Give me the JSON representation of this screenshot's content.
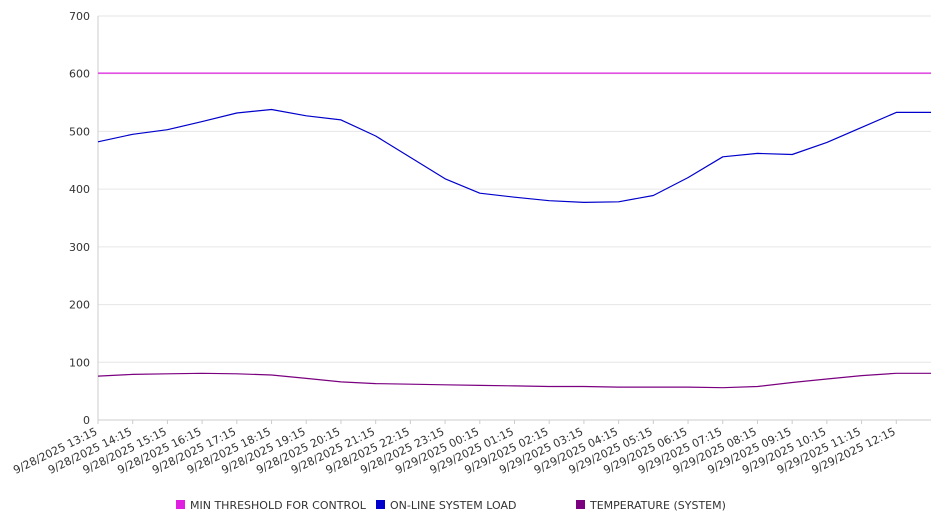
{
  "chart_data": {
    "type": "line",
    "title": "",
    "xlabel": "",
    "ylabel": "",
    "ylim": [
      0,
      700
    ],
    "yticks": [
      0,
      100,
      200,
      300,
      400,
      500,
      600,
      700
    ],
    "grid": true,
    "legend_position": "bottom",
    "x_tick_labels": [
      "9/28/2025 13:15",
      "9/28/2025 14:15",
      "9/28/2025 15:15",
      "9/28/2025 16:15",
      "9/28/2025 17:15",
      "9/28/2025 18:15",
      "9/28/2025 19:15",
      "9/28/2025 20:15",
      "9/28/2025 21:15",
      "9/28/2025 22:15",
      "9/28/2025 23:15",
      "9/29/2025 00:15",
      "9/29/2025 01:15",
      "9/29/2025 02:15",
      "9/29/2025 03:15",
      "9/29/2025 04:15",
      "9/29/2025 05:15",
      "9/29/2025 06:15",
      "9/29/2025 07:15",
      "9/29/2025 08:15",
      "9/29/2025 09:15",
      "9/29/2025 10:15",
      "9/29/2025 11:15",
      "9/29/2025 12:15"
    ],
    "x": [
      "9/28/2025 13:15",
      "9/28/2025 14:15",
      "9/28/2025 15:15",
      "9/28/2025 16:15",
      "9/28/2025 17:15",
      "9/28/2025 18:15",
      "9/28/2025 19:15",
      "9/28/2025 20:15",
      "9/28/2025 21:15",
      "9/28/2025 22:15",
      "9/28/2025 23:15",
      "9/29/2025 00:15",
      "9/29/2025 01:15",
      "9/29/2025 02:15",
      "9/29/2025 03:15",
      "9/29/2025 04:15",
      "9/29/2025 05:15",
      "9/29/2025 06:15",
      "9/29/2025 07:15",
      "9/29/2025 08:15",
      "9/29/2025 09:15",
      "9/29/2025 10:15",
      "9/29/2025 11:15",
      "9/29/2025 12:15"
    ],
    "series": [
      {
        "name": "MIN THRESHOLD FOR CONTROL",
        "color": "#e020e0",
        "values": [
          601,
          601,
          601,
          601,
          601,
          601,
          601,
          601,
          601,
          601,
          601,
          601,
          601,
          601,
          601,
          601,
          601,
          601,
          601,
          601,
          601,
          601,
          601,
          601
        ]
      },
      {
        "name": "ON-LINE SYSTEM LOAD",
        "color": "#0000cc",
        "values": [
          482,
          495,
          503,
          517,
          532,
          538,
          527,
          520,
          492,
          455,
          418,
          393,
          386,
          380,
          377,
          378,
          389,
          420,
          456,
          462,
          460,
          481,
          507,
          533
        ]
      },
      {
        "name": "TEMPERATURE (SYSTEM)",
        "color": "#7a0080",
        "values": [
          76,
          79,
          80,
          81,
          80,
          78,
          72,
          66,
          63,
          62,
          61,
          60,
          59,
          58,
          58,
          57,
          57,
          57,
          56,
          58,
          65,
          71,
          77,
          81
        ]
      }
    ]
  }
}
